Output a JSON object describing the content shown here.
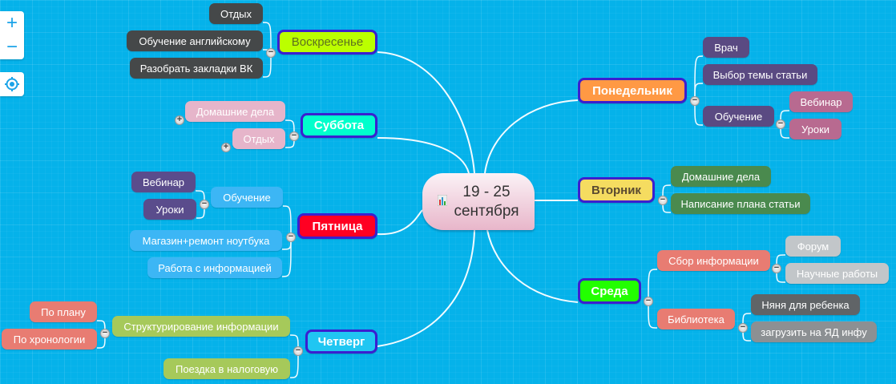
{
  "controls": {
    "zoom_in": "+",
    "zoom_out": "−",
    "center_icon": "target-icon"
  },
  "center": {
    "line1": "19 - 25",
    "line2": "сентября",
    "icon": "chart-icon"
  },
  "colors": {
    "background": "#05b2ea",
    "day_border": "#3b1fd0",
    "lines": "#ffffff"
  },
  "days": {
    "sunday": {
      "label": "Воскресенье",
      "color": "#bbff00",
      "children": [
        "Отдых",
        "Обучение английскому",
        "Разобрать закладки ВК"
      ]
    },
    "saturday": {
      "label": "Суббота",
      "color": "#00ffcc",
      "children": [
        "Домашние дела",
        "Отдых"
      ]
    },
    "friday": {
      "label": "Пятница",
      "color": "#ff0022",
      "children": [
        "Обучение",
        "Магазин+ремонт ноутбука",
        "Работа с информацией"
      ],
      "learning_children": [
        "Вебинар",
        "Уроки"
      ]
    },
    "thursday": {
      "label": "Четверг",
      "color": "#20c6f2",
      "children": [
        "Структурирование информации",
        "Поездка в налоговую"
      ],
      "structuring_children": [
        "По плану",
        "По хронологии"
      ]
    },
    "monday": {
      "label": "Понедельник",
      "color": "#ff9944",
      "children": [
        "Врач",
        "Выбор темы статьи",
        "Обучение"
      ],
      "learning_children": [
        "Вебинар",
        "Уроки"
      ]
    },
    "tuesday": {
      "label": "Вторник",
      "color": "#f5dc60",
      "children": [
        "Домашние дела",
        "Написание плана статьи"
      ]
    },
    "wednesday": {
      "label": "Среда",
      "color": "#22ff00",
      "children": [
        "Сбор информации",
        "Библиотека"
      ],
      "info_children": [
        "Форум",
        "Научные работы"
      ],
      "library_children": [
        "Няня для ребенка",
        "загрузить на ЯД инфу"
      ]
    }
  }
}
